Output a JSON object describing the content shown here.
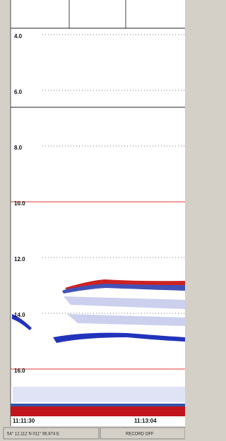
{
  "echogram": {
    "depth_labels": [
      "4.0",
      "6.0",
      "8.0",
      "10.0",
      "12.0",
      "14.0",
      "16.0"
    ],
    "time_labels": [
      "11:11:30",
      "11:13:04"
    ]
  },
  "status_bar": {
    "position": "54° 12.112 N  011° 56.874 E",
    "record": "RECORD OFF"
  }
}
